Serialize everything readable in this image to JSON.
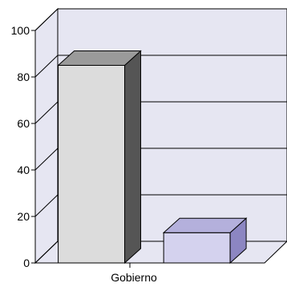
{
  "chart_data": {
    "type": "bar",
    "three_d": true,
    "categories": [
      "Gobierno"
    ],
    "series": [
      {
        "values": [
          85
        ],
        "color": "#dcdcdc",
        "side_color": "#555555",
        "top_color": "#9a9a9a"
      },
      {
        "values": [
          13
        ],
        "color": "#d4d2ee",
        "side_color": "#8c86c2",
        "top_color": "#b4b0dc"
      }
    ],
    "ylim": [
      0,
      100
    ],
    "yticks": [
      0,
      20,
      40,
      60,
      80,
      100
    ],
    "grid": true,
    "legend": "none",
    "colors": {
      "wall": "#e6e6f2",
      "grid": "#000000"
    }
  }
}
